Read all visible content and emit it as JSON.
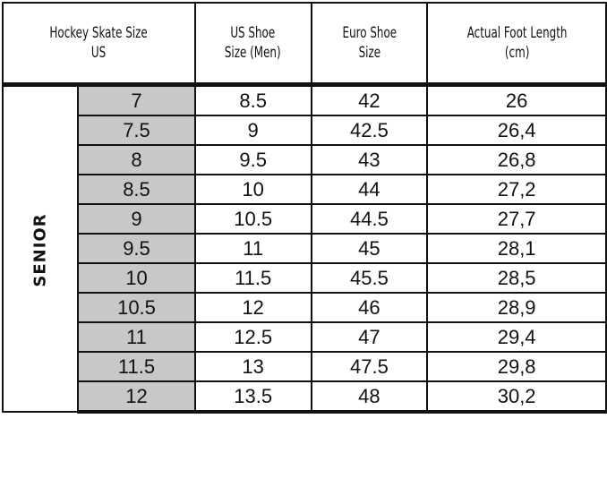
{
  "headers": {
    "skate_size_line1": "Hockey Skate Size",
    "skate_size_line2": "US",
    "us_shoe_line1": "US Shoe",
    "us_shoe_line2": "Size (Men)",
    "euro_shoe_line1": "Euro Shoe",
    "euro_shoe_line2": "Size",
    "foot_length_line1": "Actual Foot Length",
    "foot_length_line2": "(cm)"
  },
  "category": "SENIOR",
  "rows": [
    {
      "skate": "7",
      "us_shoe": "8.5",
      "euro": "42",
      "foot_cm": "26"
    },
    {
      "skate": "7.5",
      "us_shoe": "9",
      "euro": "42.5",
      "foot_cm": "26,4"
    },
    {
      "skate": "8",
      "us_shoe": "9.5",
      "euro": "43",
      "foot_cm": "26,8"
    },
    {
      "skate": "8.5",
      "us_shoe": "10",
      "euro": "44",
      "foot_cm": "27,2"
    },
    {
      "skate": "9",
      "us_shoe": "10.5",
      "euro": "44.5",
      "foot_cm": "27,7"
    },
    {
      "skate": "9.5",
      "us_shoe": "11",
      "euro": "45",
      "foot_cm": "28,1"
    },
    {
      "skate": "10",
      "us_shoe": "11.5",
      "euro": "45.5",
      "foot_cm": "28,5"
    },
    {
      "skate": "10.5",
      "us_shoe": "12",
      "euro": "46",
      "foot_cm": "28,9"
    },
    {
      "skate": "11",
      "us_shoe": "12.5",
      "euro": "47",
      "foot_cm": "29,4"
    },
    {
      "skate": "11.5",
      "us_shoe": "13",
      "euro": "47.5",
      "foot_cm": "29,8"
    },
    {
      "skate": "12",
      "us_shoe": "13.5",
      "euro": "48",
      "foot_cm": "30,2"
    }
  ],
  "colors": {
    "skate_size_cell_bg": "#c8c8c8",
    "border": "#111111",
    "background": "#ffffff"
  }
}
